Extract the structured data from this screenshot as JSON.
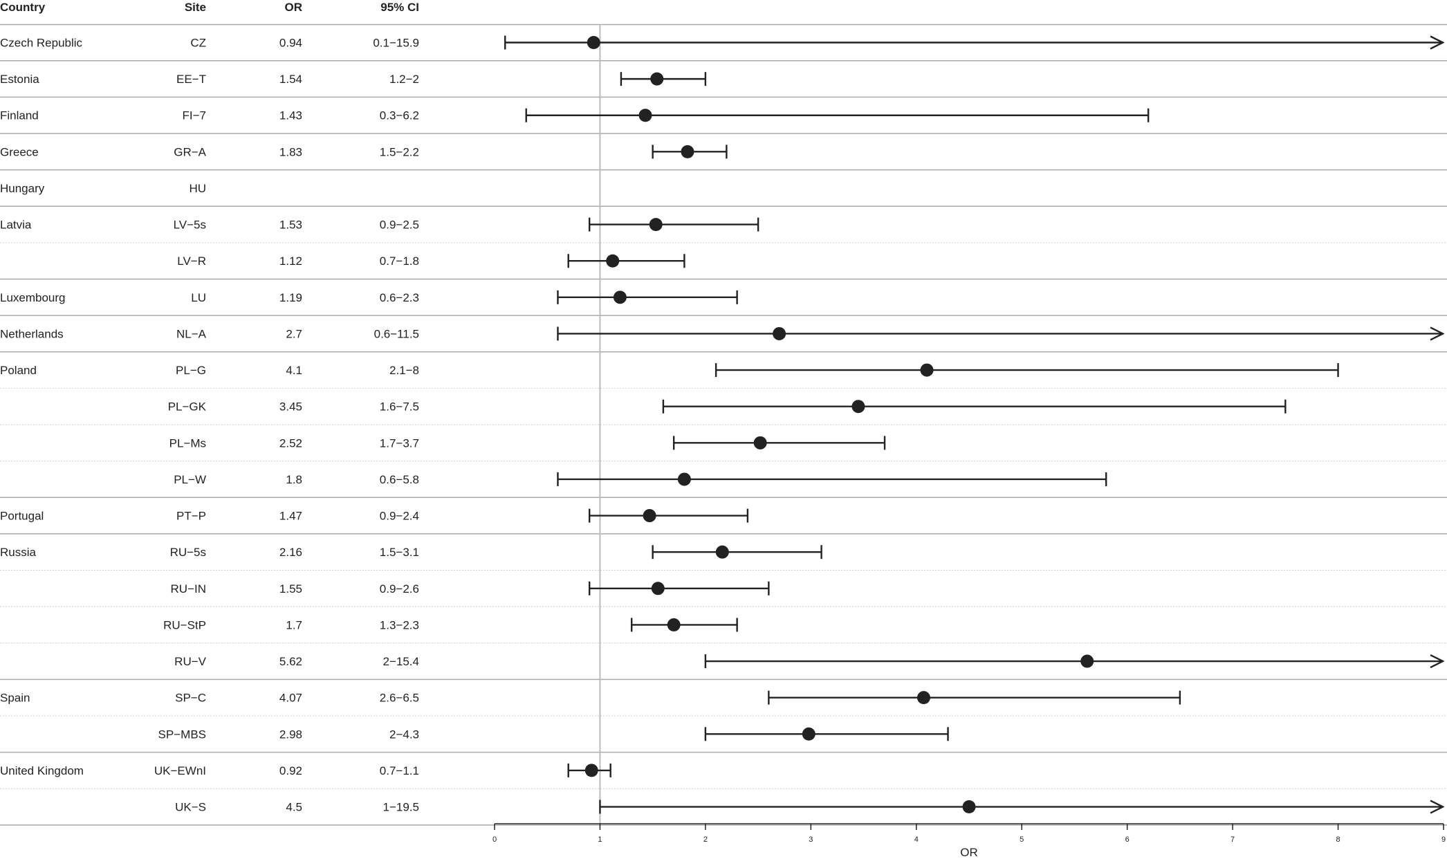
{
  "table": {
    "headers": {
      "country": "Country",
      "site": "Site",
      "or": "OR",
      "ci": "95% CI"
    }
  },
  "chart_data": {
    "type": "forest",
    "xlabel": "OR",
    "xlim": [
      0,
      9
    ],
    "xticks": [
      0,
      1,
      2,
      3,
      4,
      5,
      6,
      7,
      8,
      9
    ],
    "reference_line": 1,
    "grid": false,
    "rows": [
      {
        "country": "Czech Republic",
        "site": "CZ",
        "or": "0.94",
        "ci": "0.1−15.9",
        "value": 0.94,
        "lower": 0.1,
        "upper": 15.9,
        "group_start": true
      },
      {
        "country": "Estonia",
        "site": "EE−T",
        "or": "1.54",
        "ci": "1.2−2",
        "value": 1.54,
        "lower": 1.2,
        "upper": 2.0,
        "group_start": true
      },
      {
        "country": "Finland",
        "site": "FI−7",
        "or": "1.43",
        "ci": "0.3−6.2",
        "value": 1.43,
        "lower": 0.3,
        "upper": 6.2,
        "group_start": true
      },
      {
        "country": "Greece",
        "site": "GR−A",
        "or": "1.83",
        "ci": "1.5−2.2",
        "value": 1.83,
        "lower": 1.5,
        "upper": 2.2,
        "group_start": true
      },
      {
        "country": "Hungary",
        "site": "HU",
        "or": "",
        "ci": "",
        "value": null,
        "lower": null,
        "upper": null,
        "group_start": true
      },
      {
        "country": "Latvia",
        "site": "LV−5s",
        "or": "1.53",
        "ci": "0.9−2.5",
        "value": 1.53,
        "lower": 0.9,
        "upper": 2.5,
        "group_start": true
      },
      {
        "country": "",
        "site": "LV−R",
        "or": "1.12",
        "ci": "0.7−1.8",
        "value": 1.12,
        "lower": 0.7,
        "upper": 1.8,
        "group_start": false
      },
      {
        "country": "Luxembourg",
        "site": "LU",
        "or": "1.19",
        "ci": "0.6−2.3",
        "value": 1.19,
        "lower": 0.6,
        "upper": 2.3,
        "group_start": true
      },
      {
        "country": "Netherlands",
        "site": "NL−A",
        "or": "2.7",
        "ci": "0.6−11.5",
        "value": 2.7,
        "lower": 0.6,
        "upper": 11.5,
        "group_start": true
      },
      {
        "country": "Poland",
        "site": "PL−G",
        "or": "4.1",
        "ci": "2.1−8",
        "value": 4.1,
        "lower": 2.1,
        "upper": 8.0,
        "group_start": true
      },
      {
        "country": "",
        "site": "PL−GK",
        "or": "3.45",
        "ci": "1.6−7.5",
        "value": 3.45,
        "lower": 1.6,
        "upper": 7.5,
        "group_start": false
      },
      {
        "country": "",
        "site": "PL−Ms",
        "or": "2.52",
        "ci": "1.7−3.7",
        "value": 2.52,
        "lower": 1.7,
        "upper": 3.7,
        "group_start": false
      },
      {
        "country": "",
        "site": "PL−W",
        "or": "1.8",
        "ci": "0.6−5.8",
        "value": 1.8,
        "lower": 0.6,
        "upper": 5.8,
        "group_start": false
      },
      {
        "country": "Portugal",
        "site": "PT−P",
        "or": "1.47",
        "ci": "0.9−2.4",
        "value": 1.47,
        "lower": 0.9,
        "upper": 2.4,
        "group_start": true
      },
      {
        "country": "Russia",
        "site": "RU−5s",
        "or": "2.16",
        "ci": "1.5−3.1",
        "value": 2.16,
        "lower": 1.5,
        "upper": 3.1,
        "group_start": true
      },
      {
        "country": "",
        "site": "RU−IN",
        "or": "1.55",
        "ci": "0.9−2.6",
        "value": 1.55,
        "lower": 0.9,
        "upper": 2.6,
        "group_start": false
      },
      {
        "country": "",
        "site": "RU−StP",
        "or": "1.7",
        "ci": "1.3−2.3",
        "value": 1.7,
        "lower": 1.3,
        "upper": 2.3,
        "group_start": false
      },
      {
        "country": "",
        "site": "RU−V",
        "or": "5.62",
        "ci": "2−15.4",
        "value": 5.62,
        "lower": 2.0,
        "upper": 15.4,
        "group_start": false
      },
      {
        "country": "Spain",
        "site": "SP−C",
        "or": "4.07",
        "ci": "2.6−6.5",
        "value": 4.07,
        "lower": 2.6,
        "upper": 6.5,
        "group_start": true
      },
      {
        "country": "",
        "site": "SP−MBS",
        "or": "2.98",
        "ci": "2−4.3",
        "value": 2.98,
        "lower": 2.0,
        "upper": 4.3,
        "group_start": false
      },
      {
        "country": "United Kingdom",
        "site": "UK−EWnI",
        "or": "0.92",
        "ci": "0.7−1.1",
        "value": 0.92,
        "lower": 0.7,
        "upper": 1.1,
        "group_start": true
      },
      {
        "country": "",
        "site": "UK−S",
        "or": "4.5",
        "ci": "1−19.5",
        "value": 4.5,
        "lower": 1.0,
        "upper": 19.5,
        "group_start": false
      }
    ]
  }
}
